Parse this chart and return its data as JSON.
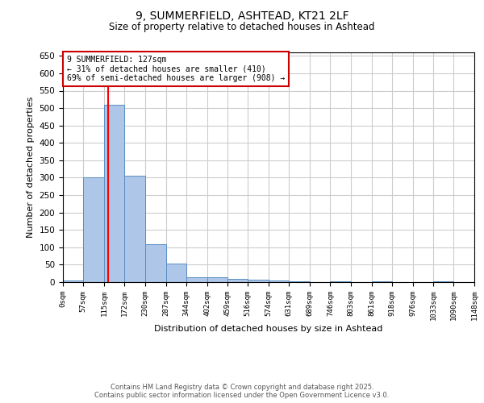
{
  "title_line1": "9, SUMMERFIELD, ASHTEAD, KT21 2LF",
  "title_line2": "Size of property relative to detached houses in Ashtead",
  "xlabel": "Distribution of detached houses by size in Ashtead",
  "ylabel": "Number of detached properties",
  "bin_edges": [
    0,
    57,
    115,
    172,
    230,
    287,
    344,
    402,
    459,
    516,
    574,
    631,
    689,
    746,
    803,
    861,
    918,
    976,
    1033,
    1090,
    1148
  ],
  "bar_heights": [
    5,
    300,
    510,
    305,
    108,
    53,
    13,
    15,
    10,
    8,
    5,
    2,
    0,
    3,
    0,
    2,
    0,
    0,
    2,
    0
  ],
  "bar_color": "#aec6e8",
  "bar_edge_color": "#5a8fc2",
  "red_line_x": 127,
  "ylim": [
    0,
    660
  ],
  "yticks": [
    0,
    50,
    100,
    150,
    200,
    250,
    300,
    350,
    400,
    450,
    500,
    550,
    600,
    650
  ],
  "annotation_text": "9 SUMMERFIELD: 127sqm\n← 31% of detached houses are smaller (410)\n69% of semi-detached houses are larger (908) →",
  "annotation_box_color": "#ffffff",
  "annotation_box_edge_color": "#cc0000",
  "footer_line1": "Contains HM Land Registry data © Crown copyright and database right 2025.",
  "footer_line2": "Contains public sector information licensed under the Open Government Licence v3.0.",
  "background_color": "#ffffff",
  "grid_color": "#cccccc",
  "tick_labels": [
    "0sqm",
    "57sqm",
    "115sqm",
    "172sqm",
    "230sqm",
    "287sqm",
    "344sqm",
    "402sqm",
    "459sqm",
    "516sqm",
    "574sqm",
    "631sqm",
    "689sqm",
    "746sqm",
    "803sqm",
    "861sqm",
    "918sqm",
    "976sqm",
    "1033sqm",
    "1090sqm",
    "1148sqm"
  ]
}
